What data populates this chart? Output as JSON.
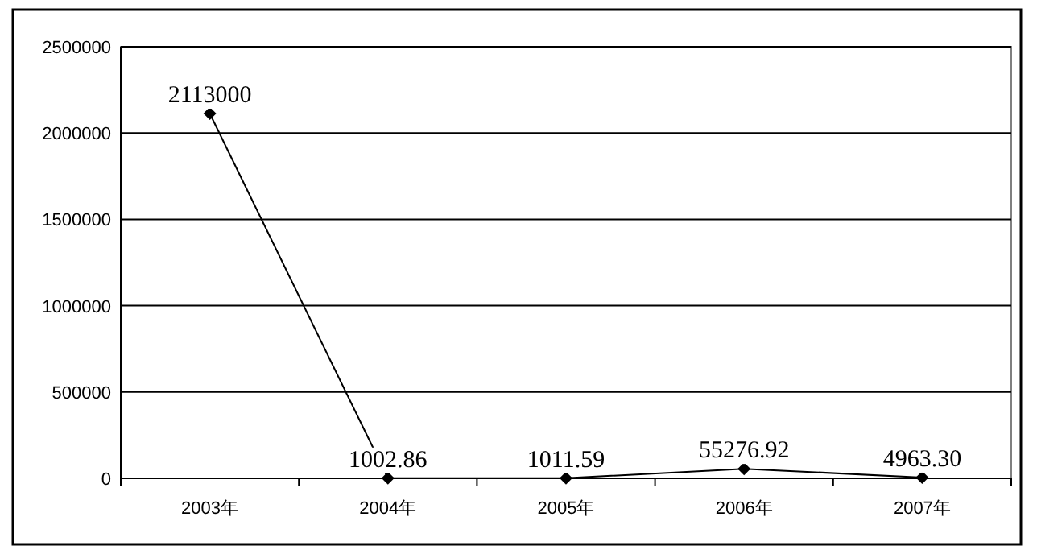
{
  "chart_data": {
    "type": "line",
    "categories": [
      "2003年",
      "2004年",
      "2005年",
      "2006年",
      "2007年"
    ],
    "series": [
      {
        "color": "#000000",
        "values": [
          2113000,
          1002.86,
          1011.59,
          55276.92,
          4963.3
        ],
        "value_labels": [
          "2113000",
          "1002.86",
          "1011.59",
          "55276.92",
          "4963.30"
        ]
      }
    ],
    "ylim": [
      0,
      2500000
    ],
    "yticks": [
      0,
      500000,
      1000000,
      1500000,
      2000000,
      2500000
    ],
    "grid": "y",
    "marker": "diamond",
    "line_style": "solid"
  }
}
